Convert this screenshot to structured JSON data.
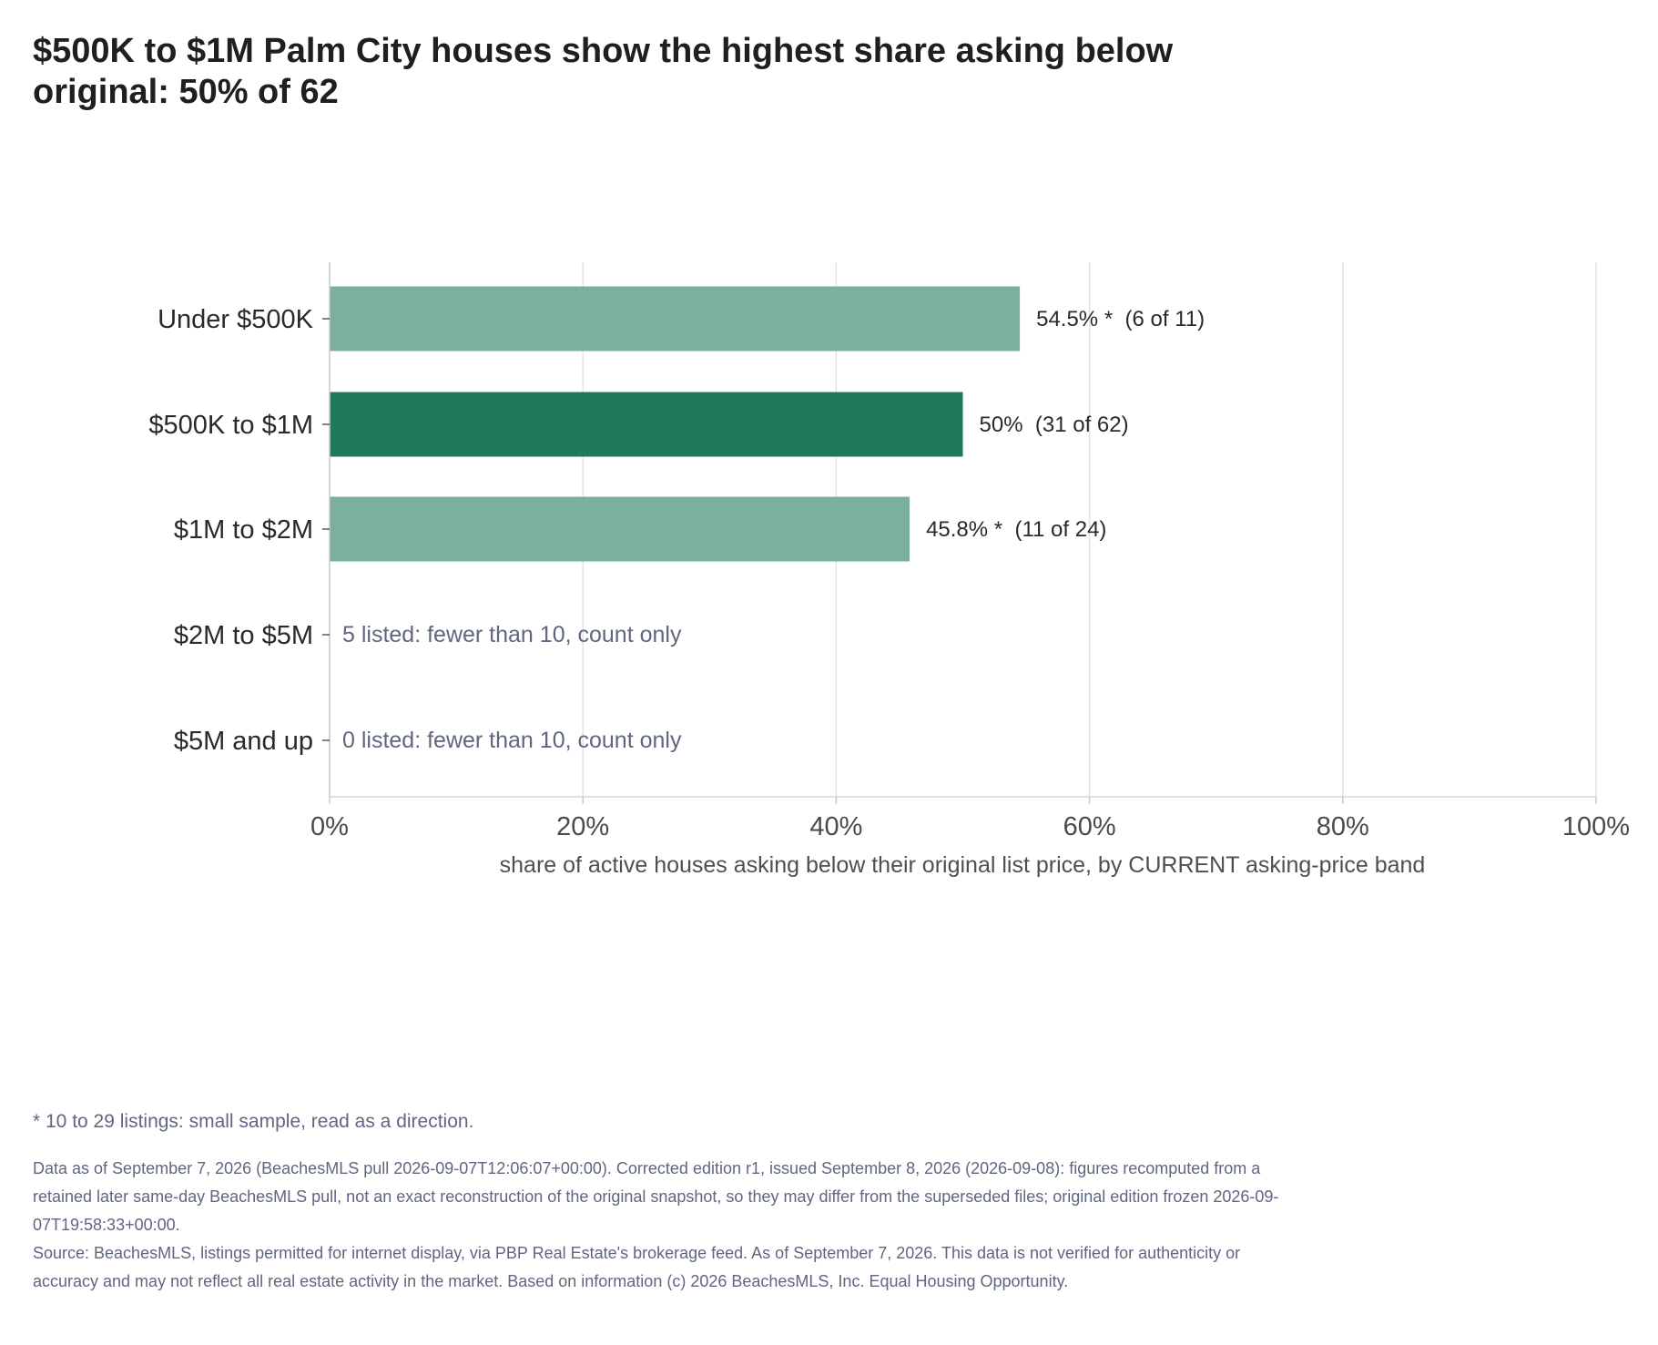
{
  "chart_data": {
    "type": "bar",
    "orientation": "horizontal",
    "title": "$500K to $1M Palm City houses show the highest share asking below original: 50% of 62",
    "xlabel": "share of active houses asking below their original list price, by CURRENT asking-price band",
    "ylabel": "",
    "xlim": [
      0,
      100
    ],
    "x_ticks": [
      0,
      20,
      40,
      60,
      80,
      100
    ],
    "x_tick_labels": [
      "0%",
      "20%",
      "40%",
      "60%",
      "80%",
      "100%"
    ],
    "grid": "vertical",
    "categories": [
      "Under $500K",
      "$500K to $1M",
      "$1M to $2M",
      "$2M to $5M",
      "$5M and up"
    ],
    "values": [
      54.5,
      50,
      45.8,
      null,
      null
    ],
    "bar_labels": [
      "54.5% *  (6 of 11)",
      "50%  (31 of 62)",
      "45.8% *  (11 of 24)",
      "",
      ""
    ],
    "highlight_index": 1,
    "notes": [
      "",
      "",
      "",
      "5 listed: fewer than 10, count only",
      "0 listed: fewer than 10, count only"
    ],
    "colors": {
      "bar": "#7ab09c",
      "highlight": "#1f7a5c",
      "grid": "#e3e3e8",
      "note": "#5f6780"
    }
  },
  "footnote": "* 10 to 29 listings: small sample, read as a direction.",
  "data_note": "Data as of September 7, 2026 (BeachesMLS pull 2026-09-07T12:06:07+00:00). Corrected edition r1, issued September 8, 2026 (2026-09-08): figures recomputed from a retained later same-day BeachesMLS pull, not an exact reconstruction of the original snapshot, so they may differ from the superseded files; original edition frozen 2026-09-07T19:58:33+00:00.",
  "source_note": "Source: BeachesMLS, listings permitted for internet display, via PBP Real Estate's brokerage feed. As of September 7, 2026. This data is not verified for authenticity or accuracy and may not reflect all real estate activity in the market. Based on information (c) 2026 BeachesMLS, Inc. Equal Housing Opportunity."
}
